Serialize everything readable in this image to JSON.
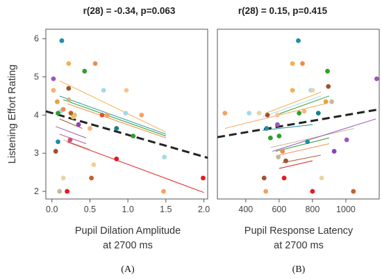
{
  "chart_data": [
    {
      "panel_label": "(A)",
      "type": "scatter",
      "title": "r(28) = -0.34, p=0.063",
      "xlabel_line1": "Pupil Dilation Amplitude",
      "xlabel_line2": "at 2700 ms",
      "ylabel": "Listening Effort Rating",
      "xlim": [
        -0.08,
        2.05
      ],
      "ylim": [
        1.8,
        6.25
      ],
      "xticks": [
        "0.0",
        "0.5",
        "1.0",
        "1.5",
        "2.0"
      ],
      "yticks": [
        "2",
        "3",
        "4",
        "5",
        "6"
      ],
      "grid": false,
      "points": [
        {
          "x": 0.13,
          "y": 5.95,
          "color": "#1f8fa6"
        },
        {
          "x": 0.02,
          "y": 4.95,
          "color": "#9b59b6"
        },
        {
          "x": 0.02,
          "y": 4.65,
          "color": "#f7b267"
        },
        {
          "x": 0.07,
          "y": 4.35,
          "color": "#e8a33d"
        },
        {
          "x": 0.12,
          "y": 4.1,
          "color": "#a6d8e8"
        },
        {
          "x": 0.08,
          "y": 4.05,
          "color": "#2ca02c"
        },
        {
          "x": 0.15,
          "y": 4.15,
          "color": "#f08c4a"
        },
        {
          "x": 0.22,
          "y": 5.35,
          "color": "#f4b04f"
        },
        {
          "x": 0.22,
          "y": 4.7,
          "color": "#a0522d"
        },
        {
          "x": 0.25,
          "y": 4.05,
          "color": "#b5651d"
        },
        {
          "x": 0.3,
          "y": 4.0,
          "color": "#e0c068"
        },
        {
          "x": 0.22,
          "y": 4.4,
          "color": "#c8b88a"
        },
        {
          "x": 0.35,
          "y": 3.75,
          "color": "#8e44ad"
        },
        {
          "x": 0.28,
          "y": 3.95,
          "color": "#e9c46a"
        },
        {
          "x": 0.05,
          "y": 3.05,
          "color": "#a0522d"
        },
        {
          "x": 0.08,
          "y": 3.3,
          "color": "#1f8fa6"
        },
        {
          "x": 0.24,
          "y": 3.35,
          "color": "#c44e8a"
        },
        {
          "x": 0.1,
          "y": 2.0,
          "color": "#c9b79c"
        },
        {
          "x": 0.15,
          "y": 2.35,
          "color": "#e8d5a0"
        },
        {
          "x": 0.2,
          "y": 2.0,
          "color": "#e41a1c"
        },
        {
          "x": 0.43,
          "y": 5.15,
          "color": "#2ca02c"
        },
        {
          "x": 0.57,
          "y": 5.35,
          "color": "#f08c4a"
        },
        {
          "x": 0.68,
          "y": 4.65,
          "color": "#a6d8e8"
        },
        {
          "x": 0.5,
          "y": 3.65,
          "color": "#f5b87a"
        },
        {
          "x": 0.55,
          "y": 2.7,
          "color": "#f0d090"
        },
        {
          "x": 0.52,
          "y": 2.35,
          "color": "#c0622f"
        },
        {
          "x": 0.66,
          "y": 4.0,
          "color": "#e74c3c"
        },
        {
          "x": 0.73,
          "y": 4.0,
          "color": "#f4a261"
        },
        {
          "x": 0.85,
          "y": 3.65,
          "color": "#17808a"
        },
        {
          "x": 0.85,
          "y": 2.85,
          "color": "#e41a1c"
        },
        {
          "x": 0.98,
          "y": 4.65,
          "color": "#f7c68a"
        },
        {
          "x": 0.97,
          "y": 4.05,
          "color": "#a6d8e8"
        },
        {
          "x": 1.07,
          "y": 3.45,
          "color": "#2ca02c"
        },
        {
          "x": 1.18,
          "y": 4.0,
          "color": "#f4a261"
        },
        {
          "x": 1.48,
          "y": 2.9,
          "color": "#a6d8e8"
        },
        {
          "x": 1.47,
          "y": 2.0,
          "color": "#f4a261"
        },
        {
          "x": 1.99,
          "y": 2.35,
          "color": "#e41a1c"
        }
      ],
      "lines": [
        {
          "x1": 0.1,
          "y1": 4.9,
          "x2": 1.5,
          "y2": 3.55,
          "color": "#f4b04f",
          "width": 1
        },
        {
          "x1": 0.1,
          "y1": 4.5,
          "x2": 1.5,
          "y2": 3.5,
          "color": "#1f8fa6",
          "width": 1
        },
        {
          "x1": 0.15,
          "y1": 4.4,
          "x2": 1.5,
          "y2": 3.45,
          "color": "#2ca02c",
          "width": 1
        },
        {
          "x1": 0.2,
          "y1": 4.3,
          "x2": 1.5,
          "y2": 3.4,
          "color": "#f08c4a",
          "width": 1
        },
        {
          "x1": 0.1,
          "y1": 3.9,
          "x2": 0.4,
          "y2": 3.65,
          "color": "#a0522d",
          "width": 1
        },
        {
          "x1": 0.05,
          "y1": 3.7,
          "x2": 0.45,
          "y2": 3.4,
          "color": "#9b59b6",
          "width": 1
        },
        {
          "x1": 0.1,
          "y1": 3.5,
          "x2": 0.45,
          "y2": 3.25,
          "color": "#c44e8a",
          "width": 1
        },
        {
          "x1": 0.15,
          "y1": 3.35,
          "x2": 0.5,
          "y2": 3.1,
          "color": "#c9b79c",
          "width": 1
        },
        {
          "x1": 0.2,
          "y1": 3.3,
          "x2": 2.0,
          "y2": 1.97,
          "color": "#e41a1c",
          "width": 1
        },
        {
          "x1": -0.08,
          "y1": 4.1,
          "x2": 2.05,
          "y2": 2.88,
          "color": "#222222",
          "width": 3,
          "dash": "11,6"
        }
      ]
    },
    {
      "panel_label": "(B)",
      "type": "scatter",
      "title": "r(28) = 0.15, p=0.415",
      "xlabel_line1": "Pupil Response Latency",
      "xlabel_line2": "at 2700 ms",
      "ylabel": "",
      "xlim": [
        230,
        1200
      ],
      "ylim": [
        1.8,
        6.25
      ],
      "xticks": [
        "400",
        "600",
        "800",
        "1000"
      ],
      "yticks": [],
      "grid": false,
      "points": [
        {
          "x": 275,
          "y": 4.05,
          "color": "#f4a261"
        },
        {
          "x": 420,
          "y": 4.05,
          "color": "#a6d8e8"
        },
        {
          "x": 480,
          "y": 4.05,
          "color": "#e8d5a0"
        },
        {
          "x": 530,
          "y": 4.0,
          "color": "#a0522d"
        },
        {
          "x": 525,
          "y": 3.65,
          "color": "#1f8fa6"
        },
        {
          "x": 548,
          "y": 3.4,
          "color": "#2ca02c"
        },
        {
          "x": 510,
          "y": 2.35,
          "color": "#a0522d"
        },
        {
          "x": 520,
          "y": 2.0,
          "color": "#f4a261"
        },
        {
          "x": 590,
          "y": 4.0,
          "color": "#f7c68a"
        },
        {
          "x": 590,
          "y": 3.75,
          "color": "#9b59b6"
        },
        {
          "x": 600,
          "y": 3.45,
          "color": "#2ca02c"
        },
        {
          "x": 595,
          "y": 2.9,
          "color": "#c9b79c"
        },
        {
          "x": 620,
          "y": 3.05,
          "color": "#f08c4a"
        },
        {
          "x": 630,
          "y": 2.35,
          "color": "#e41a1c"
        },
        {
          "x": 640,
          "y": 2.8,
          "color": "#a0522d"
        },
        {
          "x": 680,
          "y": 4.65,
          "color": "#f4b04f"
        },
        {
          "x": 680,
          "y": 5.35,
          "color": "#f4b04f"
        },
        {
          "x": 715,
          "y": 5.95,
          "color": "#1f8fa6"
        },
        {
          "x": 720,
          "y": 4.05,
          "color": "#2ca02c"
        },
        {
          "x": 740,
          "y": 5.35,
          "color": "#f08c4a"
        },
        {
          "x": 750,
          "y": 4.1,
          "color": "#f5b87a"
        },
        {
          "x": 770,
          "y": 3.3,
          "color": "#1f8fa6"
        },
        {
          "x": 790,
          "y": 4.65,
          "color": "#a6d8e8"
        },
        {
          "x": 800,
          "y": 4.65,
          "color": "#e8d5a0"
        },
        {
          "x": 800,
          "y": 2.0,
          "color": "#e41a1c"
        },
        {
          "x": 835,
          "y": 4.05,
          "color": "#17808a"
        },
        {
          "x": 855,
          "y": 2.35,
          "color": "#e8d5a0"
        },
        {
          "x": 880,
          "y": 4.35,
          "color": "#e8a33d"
        },
        {
          "x": 890,
          "y": 5.15,
          "color": "#2ca02c"
        },
        {
          "x": 895,
          "y": 4.75,
          "color": "#a0522d"
        },
        {
          "x": 915,
          "y": 4.35,
          "color": "#c9b79c"
        },
        {
          "x": 930,
          "y": 3.05,
          "color": "#8e44ad"
        },
        {
          "x": 1005,
          "y": 3.35,
          "color": "#9b59b6"
        },
        {
          "x": 1045,
          "y": 2.0,
          "color": "#c0622f"
        },
        {
          "x": 1185,
          "y": 4.95,
          "color": "#9b59b6"
        }
      ],
      "lines": [
        {
          "x1": 275,
          "y1": 3.65,
          "x2": 880,
          "y2": 4.3,
          "color": "#f4a261",
          "width": 1
        },
        {
          "x1": 500,
          "y1": 3.95,
          "x2": 850,
          "y2": 4.5,
          "color": "#a6d8e8",
          "width": 1
        },
        {
          "x1": 520,
          "y1": 4.05,
          "x2": 850,
          "y2": 4.6,
          "color": "#f4b04f",
          "width": 1
        },
        {
          "x1": 580,
          "y1": 4.0,
          "x2": 900,
          "y2": 4.5,
          "color": "#2ca02c",
          "width": 1
        },
        {
          "x1": 500,
          "y1": 3.6,
          "x2": 800,
          "y2": 3.75,
          "color": "#1f8fa6",
          "width": 1
        },
        {
          "x1": 550,
          "y1": 3.15,
          "x2": 1050,
          "y2": 3.65,
          "color": "#c9b79c",
          "width": 1
        },
        {
          "x1": 560,
          "y1": 3.05,
          "x2": 1180,
          "y2": 3.9,
          "color": "#9b59b6",
          "width": 1
        },
        {
          "x1": 580,
          "y1": 3.05,
          "x2": 900,
          "y2": 3.4,
          "color": "#2ca02c",
          "width": 1
        },
        {
          "x1": 600,
          "y1": 2.95,
          "x2": 900,
          "y2": 3.25,
          "color": "#f08c4a",
          "width": 1
        },
        {
          "x1": 620,
          "y1": 2.75,
          "x2": 850,
          "y2": 2.95,
          "color": "#a0522d",
          "width": 1
        },
        {
          "x1": 600,
          "y1": 2.6,
          "x2": 800,
          "y2": 2.8,
          "color": "#e41a1c",
          "width": 1
        },
        {
          "x1": 230,
          "y1": 3.42,
          "x2": 1200,
          "y2": 4.15,
          "color": "#222222",
          "width": 3,
          "dash": "11,6"
        }
      ]
    }
  ]
}
